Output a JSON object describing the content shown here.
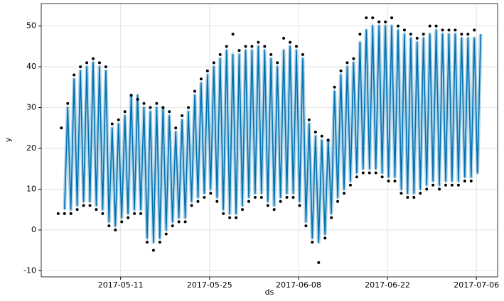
{
  "chart_data": {
    "type": "line",
    "x_label": "ds",
    "y_label": "y",
    "grid": true,
    "xlim": [
      "2017-04-28 12:00",
      "2017-07-09 08:00"
    ],
    "xticks": [
      "2017-05-11",
      "2017-05-25",
      "2017-06-08",
      "2017-06-22",
      "2017-07-06"
    ],
    "ylim": [
      -11.5,
      55.5
    ],
    "yticks": [
      -10,
      0,
      10,
      20,
      30,
      40,
      50
    ],
    "x": [
      "2017-05-01 04:00",
      "2017-05-01 16:00",
      "2017-05-02 04:00",
      "2017-05-02 16:00",
      "2017-05-03 04:00",
      "2017-05-03 16:00",
      "2017-05-04 04:00",
      "2017-05-04 16:00",
      "2017-05-05 04:00",
      "2017-05-05 16:00",
      "2017-05-06 04:00",
      "2017-05-06 16:00",
      "2017-05-07 04:00",
      "2017-05-07 16:00",
      "2017-05-08 04:00",
      "2017-05-08 16:00",
      "2017-05-09 04:00",
      "2017-05-09 16:00",
      "2017-05-10 04:00",
      "2017-05-10 16:00",
      "2017-05-11 04:00",
      "2017-05-11 16:00",
      "2017-05-12 04:00",
      "2017-05-12 16:00",
      "2017-05-13 04:00",
      "2017-05-13 16:00",
      "2017-05-14 04:00",
      "2017-05-14 16:00",
      "2017-05-15 04:00",
      "2017-05-15 16:00",
      "2017-05-16 04:00",
      "2017-05-16 16:00",
      "2017-05-17 04:00",
      "2017-05-17 16:00",
      "2017-05-18 04:00",
      "2017-05-18 16:00",
      "2017-05-19 04:00",
      "2017-05-19 16:00",
      "2017-05-20 04:00",
      "2017-05-20 16:00",
      "2017-05-21 04:00",
      "2017-05-21 16:00",
      "2017-05-22 04:00",
      "2017-05-22 16:00",
      "2017-05-23 04:00",
      "2017-05-23 16:00",
      "2017-05-24 04:00",
      "2017-05-24 16:00",
      "2017-05-25 04:00",
      "2017-05-25 16:00",
      "2017-05-26 04:00",
      "2017-05-26 16:00",
      "2017-05-27 04:00",
      "2017-05-27 16:00",
      "2017-05-28 04:00",
      "2017-05-28 16:00",
      "2017-05-29 04:00",
      "2017-05-29 16:00",
      "2017-05-30 04:00",
      "2017-05-30 16:00",
      "2017-05-31 04:00",
      "2017-05-31 16:00",
      "2017-06-01 04:00",
      "2017-06-01 16:00",
      "2017-06-02 04:00",
      "2017-06-02 16:00",
      "2017-06-03 04:00",
      "2017-06-03 16:00",
      "2017-06-04 04:00",
      "2017-06-04 16:00",
      "2017-06-05 04:00",
      "2017-06-05 16:00",
      "2017-06-06 04:00",
      "2017-06-06 16:00",
      "2017-06-07 04:00",
      "2017-06-07 16:00",
      "2017-06-08 04:00",
      "2017-06-08 16:00",
      "2017-06-09 04:00",
      "2017-06-09 16:00",
      "2017-06-10 04:00",
      "2017-06-10 16:00",
      "2017-06-11 04:00",
      "2017-06-11 16:00",
      "2017-06-12 04:00",
      "2017-06-12 16:00",
      "2017-06-13 04:00",
      "2017-06-13 16:00",
      "2017-06-14 04:00",
      "2017-06-14 16:00",
      "2017-06-15 04:00",
      "2017-06-15 16:00",
      "2017-06-16 04:00",
      "2017-06-16 16:00",
      "2017-06-17 04:00",
      "2017-06-17 16:00",
      "2017-06-18 04:00",
      "2017-06-18 16:00",
      "2017-06-19 04:00",
      "2017-06-19 16:00",
      "2017-06-20 04:00",
      "2017-06-20 16:00",
      "2017-06-21 04:00",
      "2017-06-21 16:00",
      "2017-06-22 04:00",
      "2017-06-22 16:00",
      "2017-06-23 04:00",
      "2017-06-23 16:00",
      "2017-06-24 04:00",
      "2017-06-24 16:00",
      "2017-06-25 04:00",
      "2017-06-25 16:00",
      "2017-06-26 04:00",
      "2017-06-26 16:00",
      "2017-06-27 04:00",
      "2017-06-27 16:00",
      "2017-06-28 04:00",
      "2017-06-28 16:00",
      "2017-06-29 04:00",
      "2017-06-29 16:00",
      "2017-06-30 04:00",
      "2017-06-30 16:00",
      "2017-07-01 04:00",
      "2017-07-01 16:00",
      "2017-07-02 04:00",
      "2017-07-02 16:00",
      "2017-07-03 04:00",
      "2017-07-03 16:00",
      "2017-07-04 04:00",
      "2017-07-04 16:00",
      "2017-07-05 04:00",
      "2017-07-05 16:00",
      "2017-07-06 04:00",
      "2017-07-06 16:00"
    ],
    "series": [
      {
        "kind": "forecast",
        "color": "#0072B2",
        "values": [
          null,
          null,
          5,
          30,
          5,
          37,
          6,
          39,
          7,
          40,
          7,
          41,
          6,
          40,
          5,
          39,
          2,
          25,
          1,
          26,
          3,
          28,
          4,
          33,
          5,
          33,
          5,
          30,
          -2,
          29,
          -3,
          30,
          -2,
          30,
          0,
          28,
          2,
          24,
          3,
          27,
          3,
          29,
          7,
          33,
          8,
          36,
          9,
          38,
          10,
          40,
          8,
          42,
          5,
          44,
          4,
          43,
          4,
          43,
          6,
          44,
          8,
          44,
          9,
          45,
          9,
          44,
          7,
          42,
          6,
          40,
          8,
          44,
          9,
          45,
          9,
          44,
          7,
          42,
          2,
          26,
          -2,
          23,
          -3,
          22,
          -1,
          22,
          4,
          34,
          8,
          38,
          10,
          40,
          12,
          41,
          14,
          46,
          15,
          49,
          15,
          50,
          15,
          50,
          14,
          50,
          13,
          50,
          13,
          49,
          10,
          48,
          9,
          47,
          9,
          46,
          10,
          47,
          11,
          48,
          12,
          49,
          11,
          48,
          12,
          48,
          12,
          48,
          12,
          47,
          13,
          47,
          13,
          47,
          14,
          48
        ]
      },
      {
        "kind": "observed",
        "color": "#000000",
        "values": [
          4,
          25,
          4,
          31,
          4,
          38,
          5,
          40,
          6,
          41,
          6,
          42,
          5,
          41,
          4,
          40,
          1,
          26,
          0,
          27,
          2,
          29,
          3,
          33,
          4,
          32,
          4,
          31,
          -3,
          30,
          -5,
          31,
          -3,
          30,
          -1,
          29,
          1,
          25,
          2,
          28,
          2,
          30,
          6,
          34,
          7,
          37,
          8,
          39,
          9,
          41,
          7,
          43,
          4,
          45,
          3,
          48,
          3,
          44,
          5,
          45,
          7,
          45,
          8,
          46,
          8,
          45,
          6,
          43,
          5,
          41,
          7,
          47,
          8,
          46,
          8,
          45,
          6,
          43,
          1,
          27,
          -3,
          24,
          -8,
          23,
          -2,
          22,
          3,
          35,
          7,
          39,
          9,
          41,
          11,
          42,
          13,
          48,
          14,
          52,
          14,
          52,
          14,
          51,
          13,
          51,
          12,
          52,
          12,
          50,
          9,
          49,
          8,
          48,
          8,
          47,
          9,
          48,
          10,
          50,
          11,
          50,
          10,
          49,
          11,
          49,
          11,
          49,
          11,
          48,
          12,
          48,
          12,
          49,
          null,
          null
        ]
      }
    ]
  }
}
